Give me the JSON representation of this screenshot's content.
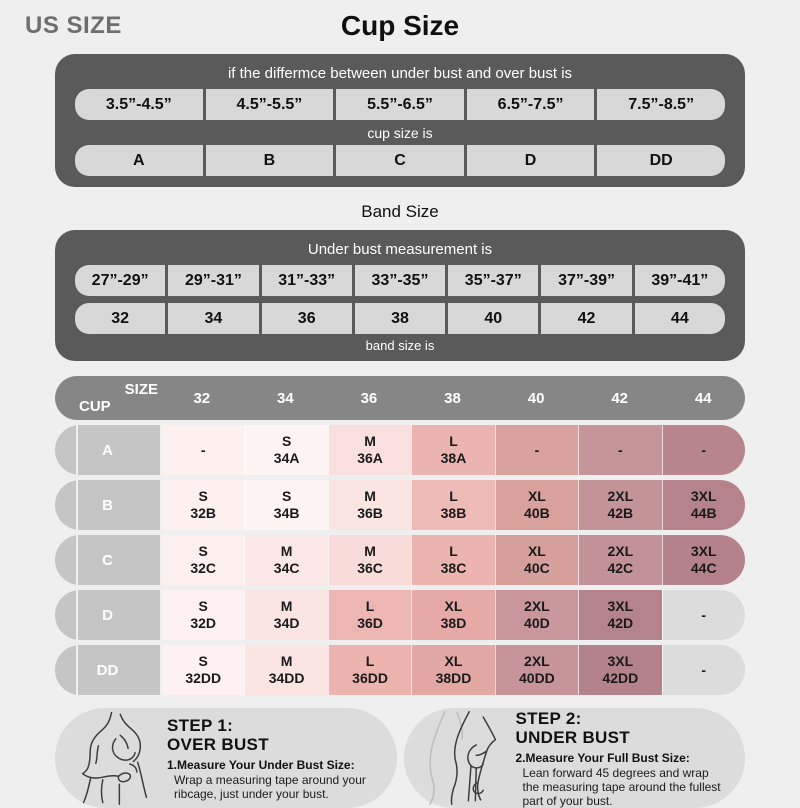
{
  "page": {
    "background": "#efefef"
  },
  "header": {
    "us_size": "US SIZE",
    "title": "Cup Size"
  },
  "cup_panel": {
    "panel_bg": "#5a5a5a",
    "cell_bg": "#d8d8d8",
    "heading": "if the differmce between under bust and over bust is",
    "ranges": [
      "3.5”-4.5”",
      "4.5”-5.5”",
      "5.5”-6.5”",
      "6.5”-7.5”",
      "7.5”-8.5”"
    ],
    "mid_label": "cup size is",
    "cups": [
      "A",
      "B",
      "C",
      "D",
      "DD"
    ]
  },
  "band_section": {
    "title": "Band Size",
    "heading": "Under bust measurement is",
    "ranges": [
      "27”-29”",
      "29”-31”",
      "31”-33”",
      "33”-35”",
      "35”-37”",
      "37”-39”",
      "39”-41”"
    ],
    "sizes": [
      "32",
      "34",
      "36",
      "38",
      "40",
      "42",
      "44"
    ],
    "footer": "band size is"
  },
  "matrix": {
    "size_label": "SIZE",
    "cup_label": "CUP",
    "header_bg": "#868686",
    "row_label_bg": "#c5c5c5",
    "columns": [
      "32",
      "34",
      "36",
      "38",
      "40",
      "42",
      "44"
    ],
    "rows": [
      {
        "cup": "A",
        "cells": [
          {
            "t": "-",
            "b": "",
            "color": "#fdf1f0"
          },
          {
            "t": "S",
            "b": "34A",
            "color": "#fdf4f3"
          },
          {
            "t": "M",
            "b": "36A",
            "color": "#f9dfdd"
          },
          {
            "t": "L",
            "b": "38A",
            "color": "#ecb4b0"
          },
          {
            "t": "-",
            "b": "",
            "color": "#d9a29d"
          },
          {
            "t": "-",
            "b": "",
            "color": "#c59599"
          },
          {
            "t": "-",
            "b": "",
            "color": "#b8858d"
          }
        ]
      },
      {
        "cup": "B",
        "cells": [
          {
            "t": "S",
            "b": "32B",
            "color": "#fdf1f0"
          },
          {
            "t": "S",
            "b": "34B",
            "color": "#fdf4f3"
          },
          {
            "t": "M",
            "b": "36B",
            "color": "#fbe5e3"
          },
          {
            "t": "L",
            "b": "38B",
            "color": "#eebbb7"
          },
          {
            "t": "XL",
            "b": "40B",
            "color": "#d8a19c"
          },
          {
            "t": "2XL",
            "b": "42B",
            "color": "#c39397"
          },
          {
            "t": "3XL",
            "b": "44B",
            "color": "#b6838c"
          }
        ]
      },
      {
        "cup": "C",
        "cells": [
          {
            "t": "S",
            "b": "32C",
            "color": "#fcf0ef"
          },
          {
            "t": "M",
            "b": "34C",
            "color": "#fbe8e6"
          },
          {
            "t": "M",
            "b": "36C",
            "color": "#f8dcda"
          },
          {
            "t": "L",
            "b": "38C",
            "color": "#ecb4b0"
          },
          {
            "t": "XL",
            "b": "40C",
            "color": "#d5a09c"
          },
          {
            "t": "2XL",
            "b": "42C",
            "color": "#c29298"
          },
          {
            "t": "3XL",
            "b": "44C",
            "color": "#b5828b"
          }
        ]
      },
      {
        "cup": "D",
        "cells": [
          {
            "t": "S",
            "b": "32D",
            "color": "#fdf2f1"
          },
          {
            "t": "M",
            "b": "34D",
            "color": "#fbe5e3"
          },
          {
            "t": "L",
            "b": "36D",
            "color": "#eeb6b2"
          },
          {
            "t": "XL",
            "b": "38D",
            "color": "#e5aaa6"
          },
          {
            "t": "2XL",
            "b": "40D",
            "color": "#c9969c"
          },
          {
            "t": "3XL",
            "b": "42D",
            "color": "#b5838b"
          },
          {
            "t": "-",
            "b": "",
            "color": "#dcdcdc"
          }
        ]
      },
      {
        "cup": "DD",
        "cells": [
          {
            "t": "S",
            "b": "32DD",
            "color": "#fdf2f1"
          },
          {
            "t": "M",
            "b": "34DD",
            "color": "#fbe5e3"
          },
          {
            "t": "L",
            "b": "36DD",
            "color": "#ecb3af"
          },
          {
            "t": "XL",
            "b": "38DD",
            "color": "#e3a7a4"
          },
          {
            "t": "2XL",
            "b": "40DD",
            "color": "#c79499"
          },
          {
            "t": "3XL",
            "b": "42DD",
            "color": "#b4828a"
          },
          {
            "t": "-",
            "b": "",
            "color": "#dcdcdc"
          }
        ]
      }
    ]
  },
  "steps_style": {
    "pill_bg": "#dcdcdc"
  },
  "steps": [
    {
      "title1": "STEP 1:",
      "title2": "OVER BUST",
      "lead": "1.Measure Your Under Bust Size:",
      "body": "Wrap a measuring tape around your ribcage, just under your bust."
    },
    {
      "title1": "STEP 2:",
      "title2": "UNDER BUST",
      "lead": "2.Measure Your Full Bust Size:",
      "body": "Lean forward 45 degrees and wrap the measuring tape around the fullest part of your bust."
    }
  ],
  "chart_data": [
    {
      "type": "table",
      "title": "Cup Size",
      "note": "if the differmce between under bust and over bust is → cup size is",
      "columns": [
        "3.5”-4.5”",
        "4.5”-5.5”",
        "5.5”-6.5”",
        "6.5”-7.5”",
        "7.5”-8.5”"
      ],
      "rows": [
        [
          "A",
          "B",
          "C",
          "D",
          "DD"
        ]
      ]
    },
    {
      "type": "table",
      "title": "Band Size",
      "note": "Under bust measurement is → band size is",
      "columns": [
        "27”-29”",
        "29”-31”",
        "31”-33”",
        "33”-35”",
        "35”-37”",
        "37”-39”",
        "39”-41”"
      ],
      "rows": [
        [
          "32",
          "34",
          "36",
          "38",
          "40",
          "42",
          "44"
        ]
      ]
    },
    {
      "type": "table",
      "title": "Size matrix (CUP × band SIZE)",
      "columns": [
        "CUP",
        "32",
        "34",
        "36",
        "38",
        "40",
        "42",
        "44"
      ],
      "rows": [
        [
          "A",
          "-",
          "S 34A",
          "M 36A",
          "L 38A",
          "-",
          "-",
          "-"
        ],
        [
          "B",
          "S 32B",
          "S 34B",
          "M 36B",
          "L 38B",
          "XL 40B",
          "2XL 42B",
          "3XL 44B"
        ],
        [
          "C",
          "S 32C",
          "M 34C",
          "M 36C",
          "L 38C",
          "XL 40C",
          "2XL 42C",
          "3XL 44C"
        ],
        [
          "D",
          "S 32D",
          "M 34D",
          "L 36D",
          "XL 38D",
          "2XL 40D",
          "3XL 42D",
          "-"
        ],
        [
          "DD",
          "S 32DD",
          "M 34DD",
          "L 36DD",
          "XL 38DD",
          "2XL 40DD",
          "3XL 42DD",
          "-"
        ]
      ]
    }
  ]
}
